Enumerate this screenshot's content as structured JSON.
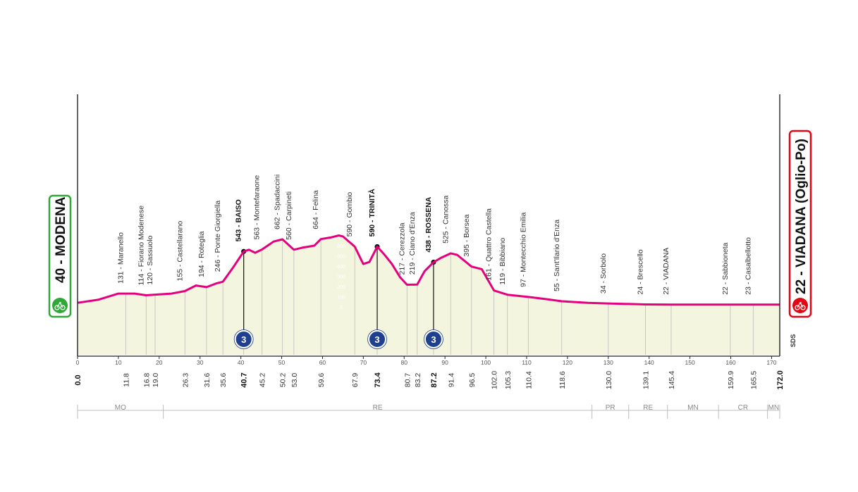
{
  "chart_data": {
    "type": "area",
    "title": "",
    "xlabel": "",
    "ylabel": "",
    "xlim": [
      0,
      172
    ],
    "ylim": [
      0,
      700
    ],
    "grid": false,
    "line_color": "#e6007e",
    "fill_color": "#f3f5de",
    "x_ticks": [
      0,
      10,
      20,
      30,
      40,
      50,
      60,
      70,
      80,
      90,
      100,
      110,
      120,
      130,
      140,
      150,
      160,
      170
    ],
    "altitude_ticks": [
      0,
      100,
      200,
      300,
      400,
      500,
      600
    ],
    "profile": [
      {
        "x": 0,
        "y": 40
      },
      {
        "x": 5,
        "y": 70
      },
      {
        "x": 10,
        "y": 130
      },
      {
        "x": 14,
        "y": 130
      },
      {
        "x": 16.8,
        "y": 114
      },
      {
        "x": 19.0,
        "y": 120
      },
      {
        "x": 23,
        "y": 130
      },
      {
        "x": 26.3,
        "y": 155
      },
      {
        "x": 29,
        "y": 210
      },
      {
        "x": 31.6,
        "y": 194
      },
      {
        "x": 34,
        "y": 230
      },
      {
        "x": 35.6,
        "y": 246
      },
      {
        "x": 38,
        "y": 380
      },
      {
        "x": 40.7,
        "y": 543
      },
      {
        "x": 42,
        "y": 560
      },
      {
        "x": 43.5,
        "y": 530
      },
      {
        "x": 45.2,
        "y": 563
      },
      {
        "x": 48,
        "y": 640
      },
      {
        "x": 50.2,
        "y": 662
      },
      {
        "x": 53.0,
        "y": 560
      },
      {
        "x": 55,
        "y": 580
      },
      {
        "x": 58,
        "y": 600
      },
      {
        "x": 59.6,
        "y": 664
      },
      {
        "x": 62,
        "y": 680
      },
      {
        "x": 64,
        "y": 700
      },
      {
        "x": 65,
        "y": 690
      },
      {
        "x": 67.9,
        "y": 590
      },
      {
        "x": 70,
        "y": 420
      },
      {
        "x": 71.5,
        "y": 440
      },
      {
        "x": 73.4,
        "y": 590
      },
      {
        "x": 75,
        "y": 520
      },
      {
        "x": 77,
        "y": 420
      },
      {
        "x": 79,
        "y": 290
      },
      {
        "x": 80.7,
        "y": 217
      },
      {
        "x": 83.2,
        "y": 219
      },
      {
        "x": 85,
        "y": 350
      },
      {
        "x": 87.2,
        "y": 438
      },
      {
        "x": 89,
        "y": 480
      },
      {
        "x": 91.4,
        "y": 525
      },
      {
        "x": 93,
        "y": 510
      },
      {
        "x": 96.5,
        "y": 395
      },
      {
        "x": 99,
        "y": 370
      },
      {
        "x": 102.0,
        "y": 161
      },
      {
        "x": 105.3,
        "y": 119
      },
      {
        "x": 110.4,
        "y": 97
      },
      {
        "x": 115,
        "y": 75
      },
      {
        "x": 118.6,
        "y": 55
      },
      {
        "x": 125,
        "y": 40
      },
      {
        "x": 130.0,
        "y": 34
      },
      {
        "x": 139.1,
        "y": 24
      },
      {
        "x": 145.4,
        "y": 22
      },
      {
        "x": 159.9,
        "y": 22
      },
      {
        "x": 165.5,
        "y": 23
      },
      {
        "x": 172.0,
        "y": 22
      }
    ],
    "points": [
      {
        "km": "0.0",
        "x": 0,
        "y": 40,
        "label": "",
        "bold": true
      },
      {
        "km": "11.8",
        "x": 11.8,
        "y": 131,
        "label": "131 - Maranello",
        "bold": false
      },
      {
        "km": "16.8",
        "x": 16.8,
        "y": 114,
        "label": "114 - Fiorano Modenese",
        "bold": false
      },
      {
        "km": "19.0",
        "x": 19.0,
        "y": 120,
        "label": "120 - Sassuolo",
        "bold": false
      },
      {
        "km": "26.3",
        "x": 26.3,
        "y": 155,
        "label": "155 - Castellarano",
        "bold": false
      },
      {
        "km": "31.6",
        "x": 31.6,
        "y": 194,
        "label": "194 - Roteglia",
        "bold": false
      },
      {
        "km": "35.6",
        "x": 35.6,
        "y": 246,
        "label": "246 - Ponte Giorgiella",
        "bold": false
      },
      {
        "km": "40.7",
        "x": 40.7,
        "y": 543,
        "label": "543 - BAISO",
        "bold": true
      },
      {
        "km": "45.2",
        "x": 45.2,
        "y": 563,
        "label": "563 - Montefaraone",
        "bold": false
      },
      {
        "km": "50.2",
        "x": 50.2,
        "y": 662,
        "label": "662 - Spadaccini",
        "bold": false
      },
      {
        "km": "53.0",
        "x": 53.0,
        "y": 560,
        "label": "560 - Carpineti",
        "bold": false
      },
      {
        "km": "59.6",
        "x": 59.6,
        "y": 664,
        "label": "664 - Felina",
        "bold": false
      },
      {
        "km": "67.9",
        "x": 67.9,
        "y": 590,
        "label": "590 - Gombio",
        "bold": false
      },
      {
        "km": "73.4",
        "x": 73.4,
        "y": 590,
        "label": "590 - TRINITÀ",
        "bold": true
      },
      {
        "km": "80.7",
        "x": 80.7,
        "y": 217,
        "label": "217 - Cerezzola",
        "bold": false
      },
      {
        "km": "83.2",
        "x": 83.2,
        "y": 219,
        "label": "219 - Ciano d'Enza",
        "bold": false
      },
      {
        "km": "87.2",
        "x": 87.2,
        "y": 438,
        "label": "438 - ROSSENA",
        "bold": true
      },
      {
        "km": "91.4",
        "x": 91.4,
        "y": 525,
        "label": "525 - Canossa",
        "bold": false
      },
      {
        "km": "96.5",
        "x": 96.5,
        "y": 395,
        "label": "395 - Borsea",
        "bold": false
      },
      {
        "km": "102.0",
        "x": 102.0,
        "y": 161,
        "label": "161 - Quattro Castella",
        "bold": false
      },
      {
        "km": "105.3",
        "x": 105.3,
        "y": 119,
        "label": "119 - Bibbiano",
        "bold": false
      },
      {
        "km": "110.4",
        "x": 110.4,
        "y": 97,
        "label": "97 - Montecchio Emilia",
        "bold": false
      },
      {
        "km": "118.6",
        "x": 118.6,
        "y": 55,
        "label": "55 - Sant'Ilario d'Enza",
        "bold": false
      },
      {
        "km": "130.0",
        "x": 130.0,
        "y": 34,
        "label": "34 - Sorbolo",
        "bold": false
      },
      {
        "km": "139.1",
        "x": 139.1,
        "y": 24,
        "label": "24 - Brescello",
        "bold": false
      },
      {
        "km": "145.4",
        "x": 145.4,
        "y": 22,
        "label": "22 - VIADANA",
        "bold": false
      },
      {
        "km": "159.9",
        "x": 159.9,
        "y": 22,
        "label": "22 - Sabbioneta",
        "bold": false
      },
      {
        "km": "165.5",
        "x": 165.5,
        "y": 23,
        "label": "23 - Casalbellotto",
        "bold": false
      },
      {
        "km": "172.0",
        "x": 172.0,
        "y": 22,
        "label": "",
        "bold": true
      }
    ],
    "climbs": [
      {
        "x": 40.7,
        "y": 543,
        "category": "3"
      },
      {
        "x": 73.4,
        "y": 590,
        "category": "3"
      },
      {
        "x": 87.2,
        "y": 438,
        "category": "3"
      }
    ],
    "regions": [
      {
        "name": "MO",
        "from": 0,
        "to": 21
      },
      {
        "name": "RE",
        "from": 21,
        "to": 126
      },
      {
        "name": "PR",
        "from": 126,
        "to": 135
      },
      {
        "name": "RE",
        "from": 135,
        "to": 144.5
      },
      {
        "name": "MN",
        "from": 144.5,
        "to": 157
      },
      {
        "name": "CR",
        "from": 157,
        "to": 169
      },
      {
        "name": "MN",
        "from": 169,
        "to": 172
      }
    ],
    "start": {
      "label": "40 - MODENA",
      "color": "#2ea836"
    },
    "finish": {
      "label": "22 - VIADANA (Oglio-Po)",
      "color": "#e30613"
    },
    "credit": "SDS"
  }
}
